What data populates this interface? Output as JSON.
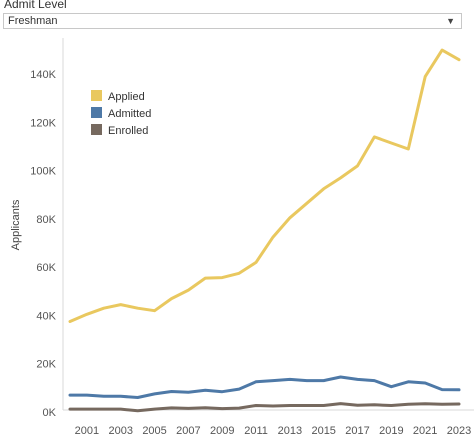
{
  "filter": {
    "label": "Admit Level",
    "selected": "Freshman",
    "caret_icon": "chevron-down-icon"
  },
  "chart_data": {
    "type": "line",
    "ylabel": "Applicants",
    "xlabel": "",
    "ylim": [
      0,
      155000
    ],
    "xlim": [
      2000,
      2023
    ],
    "grid": false,
    "legend_position": "top-left",
    "y_ticks": [
      0,
      20000,
      40000,
      60000,
      80000,
      100000,
      120000,
      140000
    ],
    "y_tick_labels": [
      "0K",
      "20K",
      "40K",
      "60K",
      "80K",
      "100K",
      "120K",
      "140K"
    ],
    "x_tick_labels": [
      "2001",
      "2003",
      "2005",
      "2007",
      "2009",
      "2011",
      "2013",
      "2015",
      "2017",
      "2019",
      "2021",
      "2023"
    ],
    "x": [
      2000,
      2001,
      2002,
      2003,
      2004,
      2005,
      2006,
      2007,
      2008,
      2009,
      2010,
      2011,
      2012,
      2013,
      2014,
      2015,
      2016,
      2017,
      2018,
      2019,
      2020,
      2021,
      2022,
      2023
    ],
    "series": [
      {
        "name": "Applied",
        "color": "#e9c85f",
        "values": [
          37500,
          40500,
          43000,
          44500,
          43000,
          42000,
          47000,
          50500,
          55500,
          55700,
          57500,
          62000,
          72500,
          80500,
          86500,
          92500,
          97000,
          102000,
          114000,
          111500,
          109000,
          139000,
          150000,
          146000
        ]
      },
      {
        "name": "Admitted",
        "color": "#4e79a7",
        "values": [
          7000,
          7000,
          6500,
          6500,
          6000,
          7500,
          8500,
          8200,
          9000,
          8400,
          9500,
          12500,
          13000,
          13500,
          13000,
          13000,
          14500,
          13500,
          13000,
          10500,
          12500,
          12000,
          9300,
          9200
        ]
      },
      {
        "name": "Enrolled",
        "color": "#76695f",
        "values": [
          1200,
          1200,
          1200,
          1200,
          500,
          1200,
          1700,
          1500,
          1800,
          1400,
          1600,
          2700,
          2500,
          2700,
          2700,
          2700,
          3500,
          2800,
          3000,
          2700,
          3200,
          3400,
          3200,
          3300
        ]
      }
    ]
  }
}
